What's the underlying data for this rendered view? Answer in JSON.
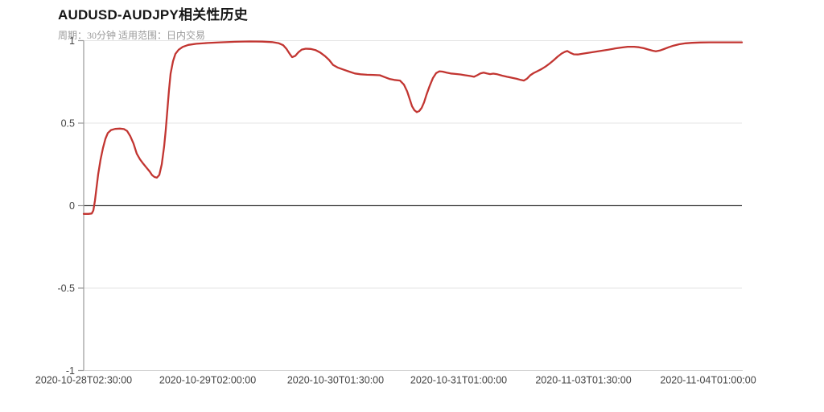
{
  "header": {
    "title": "AUDUSD-AUDJPY相关性历史",
    "subtitle": "周期：30分钟 适用范围：日内交易"
  },
  "colors": {
    "line": "#c23531",
    "title_text": "#161616",
    "subtitle_text": "#9a9a9a",
    "tick_text": "#444444",
    "grid": "#e4e4e4",
    "axis": "#999999",
    "x_axis_line": "#d2d2d2",
    "zero_line": "#444444",
    "background": "#ffffff"
  },
  "chart_data": {
    "type": "line",
    "title": "AUDUSD-AUDJPY相关性历史",
    "subtitle": "周期：30分钟 适用范围：日内交易",
    "xlabel": "",
    "ylabel": "",
    "ylim": [
      -1,
      1
    ],
    "grid": true,
    "legend": "none",
    "y_ticks": [
      1,
      0.5,
      0,
      -0.5,
      -1
    ],
    "y_tick_labels": [
      "1",
      "0.5",
      "0",
      "-0.5",
      "-1"
    ],
    "x_tick_labels": [
      "2020-10-28T02:30:00",
      "2020-10-29T02:00:00",
      "2020-10-30T01:30:00",
      "2020-10-31T01:00:00",
      "2020-11-03T01:30:00",
      "2020-11-04T01:00:00"
    ],
    "x_tick_positions": [
      0.0,
      0.1883,
      0.3826,
      0.5697,
      0.7592,
      0.9487
    ],
    "series": [
      {
        "name": "AUDUSD-AUDJPY correlation",
        "color": "#c23531",
        "points": [
          [
            0.0,
            -0.05
          ],
          [
            0.0073,
            -0.05
          ],
          [
            0.0122,
            -0.048
          ],
          [
            0.0147,
            -0.03
          ],
          [
            0.0171,
            0.03
          ],
          [
            0.0196,
            0.11
          ],
          [
            0.022,
            0.19
          ],
          [
            0.0257,
            0.28
          ],
          [
            0.0293,
            0.35
          ],
          [
            0.033,
            0.405
          ],
          [
            0.0367,
            0.44
          ],
          [
            0.0416,
            0.458
          ],
          [
            0.0477,
            0.465
          ],
          [
            0.055,
            0.467
          ],
          [
            0.0611,
            0.464
          ],
          [
            0.066,
            0.452
          ],
          [
            0.0709,
            0.42
          ],
          [
            0.0758,
            0.375
          ],
          [
            0.0807,
            0.314
          ],
          [
            0.0856,
            0.28
          ],
          [
            0.0905,
            0.254
          ],
          [
            0.0954,
            0.23
          ],
          [
            0.1002,
            0.207
          ],
          [
            0.1039,
            0.185
          ],
          [
            0.1076,
            0.173
          ],
          [
            0.1112,
            0.17
          ],
          [
            0.1149,
            0.186
          ],
          [
            0.1186,
            0.25
          ],
          [
            0.1222,
            0.36
          ],
          [
            0.1247,
            0.46
          ],
          [
            0.1271,
            0.58
          ],
          [
            0.1296,
            0.7
          ],
          [
            0.132,
            0.8
          ],
          [
            0.1357,
            0.875
          ],
          [
            0.1394,
            0.92
          ],
          [
            0.1443,
            0.945
          ],
          [
            0.1504,
            0.962
          ],
          [
            0.1589,
            0.974
          ],
          [
            0.1711,
            0.981
          ],
          [
            0.1883,
            0.986
          ],
          [
            0.2078,
            0.99
          ],
          [
            0.2298,
            0.993
          ],
          [
            0.2518,
            0.995
          ],
          [
            0.2714,
            0.994
          ],
          [
            0.2861,
            0.991
          ],
          [
            0.2958,
            0.985
          ],
          [
            0.3032,
            0.972
          ],
          [
            0.3081,
            0.95
          ],
          [
            0.313,
            0.92
          ],
          [
            0.3166,
            0.9
          ],
          [
            0.3215,
            0.908
          ],
          [
            0.3264,
            0.93
          ],
          [
            0.3313,
            0.946
          ],
          [
            0.3374,
            0.951
          ],
          [
            0.3448,
            0.95
          ],
          [
            0.3521,
            0.943
          ],
          [
            0.3594,
            0.928
          ],
          [
            0.3667,
            0.906
          ],
          [
            0.3729,
            0.883
          ],
          [
            0.379,
            0.852
          ],
          [
            0.3863,
            0.836
          ],
          [
            0.3949,
            0.824
          ],
          [
            0.4034,
            0.812
          ],
          [
            0.412,
            0.801
          ],
          [
            0.4206,
            0.796
          ],
          [
            0.4303,
            0.793
          ],
          [
            0.4401,
            0.792
          ],
          [
            0.4499,
            0.79
          ],
          [
            0.4572,
            0.779
          ],
          [
            0.4646,
            0.768
          ],
          [
            0.4719,
            0.762
          ],
          [
            0.4804,
            0.758
          ],
          [
            0.4866,
            0.733
          ],
          [
            0.4914,
            0.692
          ],
          [
            0.4951,
            0.648
          ],
          [
            0.4988,
            0.603
          ],
          [
            0.5024,
            0.578
          ],
          [
            0.5061,
            0.567
          ],
          [
            0.5098,
            0.573
          ],
          [
            0.5134,
            0.592
          ],
          [
            0.5171,
            0.626
          ],
          [
            0.5208,
            0.672
          ],
          [
            0.5257,
            0.726
          ],
          [
            0.5306,
            0.773
          ],
          [
            0.5355,
            0.803
          ],
          [
            0.5403,
            0.814
          ],
          [
            0.5452,
            0.812
          ],
          [
            0.5513,
            0.806
          ],
          [
            0.5575,
            0.801
          ],
          [
            0.5648,
            0.798
          ],
          [
            0.5721,
            0.795
          ],
          [
            0.5795,
            0.79
          ],
          [
            0.5868,
            0.786
          ],
          [
            0.5929,
            0.781
          ],
          [
            0.5978,
            0.79
          ],
          [
            0.6027,
            0.801
          ],
          [
            0.6076,
            0.806
          ],
          [
            0.6125,
            0.801
          ],
          [
            0.6174,
            0.797
          ],
          [
            0.6223,
            0.8
          ],
          [
            0.6284,
            0.796
          ],
          [
            0.6357,
            0.788
          ],
          [
            0.643,
            0.781
          ],
          [
            0.6504,
            0.775
          ],
          [
            0.6577,
            0.769
          ],
          [
            0.6638,
            0.762
          ],
          [
            0.6687,
            0.758
          ],
          [
            0.6736,
            0.77
          ],
          [
            0.6785,
            0.79
          ],
          [
            0.6834,
            0.803
          ],
          [
            0.6895,
            0.815
          ],
          [
            0.6956,
            0.828
          ],
          [
            0.7017,
            0.843
          ],
          [
            0.7078,
            0.861
          ],
          [
            0.7139,
            0.881
          ],
          [
            0.72,
            0.903
          ],
          [
            0.7262,
            0.922
          ],
          [
            0.7311,
            0.932
          ],
          [
            0.7347,
            0.937
          ],
          [
            0.7396,
            0.926
          ],
          [
            0.7445,
            0.917
          ],
          [
            0.7506,
            0.916
          ],
          [
            0.7579,
            0.921
          ],
          [
            0.7677,
            0.927
          ],
          [
            0.7775,
            0.933
          ],
          [
            0.7873,
            0.939
          ],
          [
            0.7971,
            0.945
          ],
          [
            0.8068,
            0.952
          ],
          [
            0.8166,
            0.958
          ],
          [
            0.8264,
            0.963
          ],
          [
            0.8362,
            0.963
          ],
          [
            0.8435,
            0.96
          ],
          [
            0.8509,
            0.954
          ],
          [
            0.8582,
            0.946
          ],
          [
            0.8643,
            0.939
          ],
          [
            0.8692,
            0.935
          ],
          [
            0.8753,
            0.94
          ],
          [
            0.8814,
            0.949
          ],
          [
            0.8888,
            0.96
          ],
          [
            0.8961,
            0.97
          ],
          [
            0.9046,
            0.978
          ],
          [
            0.9144,
            0.984
          ],
          [
            0.9242,
            0.987
          ],
          [
            0.9364,
            0.989
          ],
          [
            0.9511,
            0.99
          ],
          [
            0.9682,
            0.99
          ],
          [
            0.9853,
            0.99
          ],
          [
            1.0,
            0.99
          ]
        ]
      }
    ]
  }
}
